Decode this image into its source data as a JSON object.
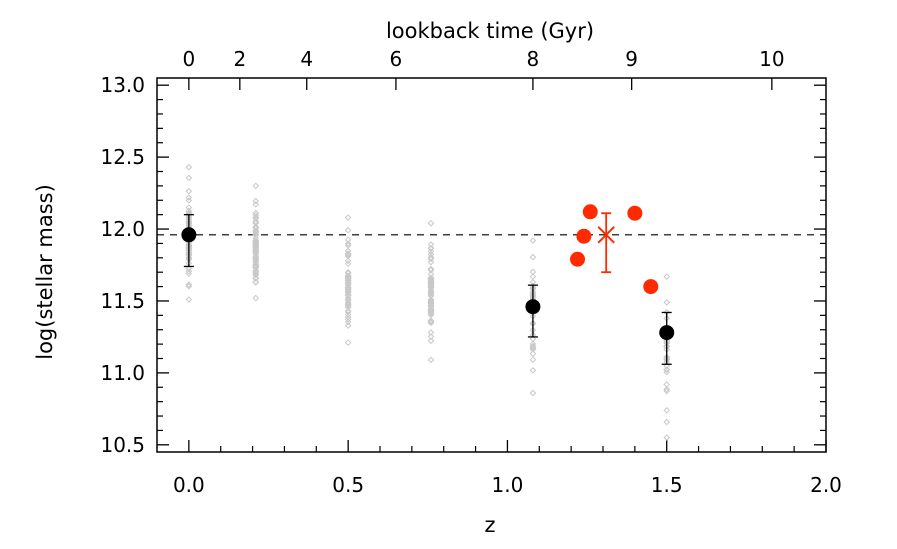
{
  "chart_data": {
    "type": "scatter",
    "xlabel": "z",
    "ylabel": "log(stellar mass)",
    "top_axis_label": "lookback time (Gyr)",
    "xlim": [
      -0.1,
      2.0
    ],
    "ylim": [
      10.45,
      13.05
    ],
    "x_ticks": [
      "0.0",
      "0.5",
      "1.0",
      "1.5",
      "2.0"
    ],
    "x_tick_values": [
      0.0,
      0.5,
      1.0,
      1.5,
      2.0
    ],
    "y_ticks": [
      "13.0",
      "12.5",
      "12.0",
      "11.5",
      "11.0",
      "10.5"
    ],
    "y_tick_values": [
      13.0,
      12.5,
      12.0,
      11.5,
      11.0,
      10.5
    ],
    "top_ticks": [
      {
        "label": "0",
        "z": 0.0
      },
      {
        "label": "2",
        "z": 0.16
      },
      {
        "label": "4",
        "z": 0.37
      },
      {
        "label": "6",
        "z": 0.65
      },
      {
        "label": "8",
        "z": 1.08
      },
      {
        "label": "9",
        "z": 1.39
      },
      {
        "label": "10",
        "z": 1.83
      }
    ],
    "reference_line": {
      "y": 11.96,
      "style": "dashed",
      "color": "#000000"
    },
    "series": [
      {
        "kind": "distribution",
        "color": "#c8c8c8",
        "marker": "diamond",
        "groups": [
          {
            "z": 0.0,
            "ymin": 11.51,
            "ymax": 12.43,
            "n": 60
          },
          {
            "z": 0.21,
            "ymin": 11.52,
            "ymax": 12.3,
            "n": 70
          },
          {
            "z": 0.5,
            "ymin": 11.21,
            "ymax": 12.08,
            "n": 60
          },
          {
            "z": 0.76,
            "ymin": 11.09,
            "ymax": 12.04,
            "n": 65
          },
          {
            "z": 1.08,
            "ymin": 10.86,
            "ymax": 11.92,
            "n": 35
          },
          {
            "z": 1.5,
            "ymin": 10.55,
            "ymax": 11.67,
            "n": 30
          }
        ]
      },
      {
        "kind": "mean_with_error",
        "color": "#000000",
        "points": [
          {
            "z": 0.0,
            "y": 11.96,
            "err_low": 11.74,
            "err_high": 12.1
          },
          {
            "z": 1.08,
            "y": 11.46,
            "err_low": 11.25,
            "err_high": 11.61
          },
          {
            "z": 1.5,
            "y": 11.28,
            "err_low": 11.06,
            "err_high": 11.42
          }
        ]
      },
      {
        "kind": "points",
        "color": "#ff2a00",
        "points": [
          {
            "z": 1.22,
            "y": 11.79
          },
          {
            "z": 1.24,
            "y": 11.95
          },
          {
            "z": 1.26,
            "y": 12.12
          },
          {
            "z": 1.4,
            "y": 12.11
          },
          {
            "z": 1.45,
            "y": 11.6
          }
        ]
      },
      {
        "kind": "cross_with_error",
        "color": "#ff2a00",
        "points": [
          {
            "z": 1.31,
            "y": 11.96,
            "err_low": 11.7,
            "err_high": 12.11
          }
        ]
      }
    ]
  }
}
